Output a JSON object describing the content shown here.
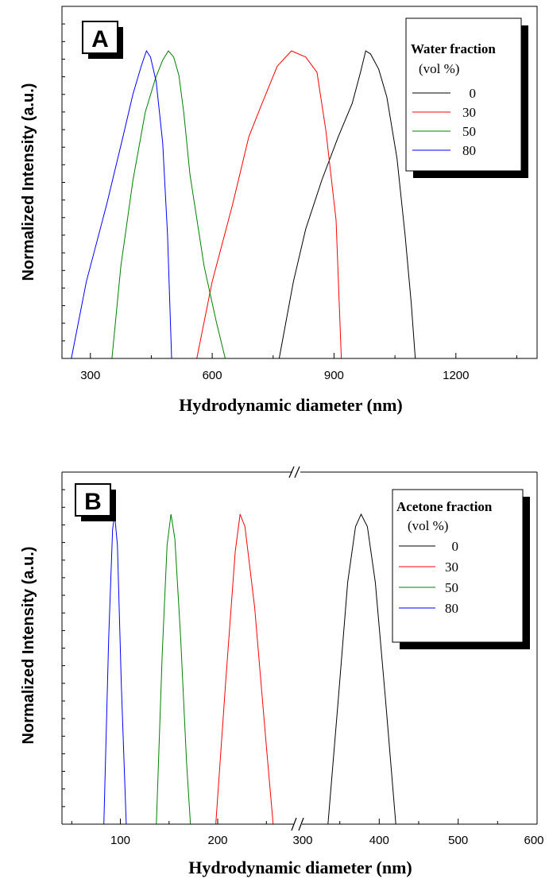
{
  "chart_data": [
    {
      "type": "line",
      "panel_label": "A",
      "xlabel": "Hydrodynamic diameter (nm)",
      "ylabel": "Normalized Intensity (a.u.)",
      "xlim": [
        230,
        1400
      ],
      "ylim": [
        0,
        1.0
      ],
      "x_ticks": [
        300,
        600,
        900,
        1200
      ],
      "x_tick_labels": [
        "300",
        "600",
        "900",
        "1200"
      ],
      "legend_title": "Water fraction",
      "legend_subtitle": "(vol %)",
      "legend_position": "top-right",
      "series": [
        {
          "name": "0",
          "color": "#000000",
          "x": [
            765,
            800,
            830,
            870,
            910,
            945,
            965,
            978,
            990,
            1010,
            1030,
            1055,
            1075,
            1090,
            1100
          ],
          "y": [
            0.0,
            0.25,
            0.42,
            0.58,
            0.72,
            0.83,
            0.93,
            1.0,
            0.99,
            0.94,
            0.85,
            0.65,
            0.4,
            0.18,
            0.0
          ]
        },
        {
          "name": "30",
          "color": "#ff0000",
          "x": [
            562,
            600,
            650,
            690,
            720,
            760,
            795,
            830,
            858,
            880,
            905,
            918
          ],
          "y": [
            0.0,
            0.25,
            0.5,
            0.72,
            0.82,
            0.95,
            1.0,
            0.98,
            0.93,
            0.74,
            0.45,
            0.0
          ]
        },
        {
          "name": "50",
          "color": "#008000",
          "x": [
            353,
            375,
            405,
            435,
            460,
            478,
            492,
            505,
            518,
            530,
            545,
            580,
            610,
            632
          ],
          "y": [
            0.0,
            0.3,
            0.58,
            0.8,
            0.91,
            0.97,
            1.0,
            0.98,
            0.92,
            0.8,
            0.6,
            0.3,
            0.12,
            0.0
          ]
        },
        {
          "name": "80",
          "color": "#0000ff",
          "x": [
            253,
            290,
            340,
            380,
            405,
            425,
            438,
            448,
            462,
            478,
            490,
            500
          ],
          "y": [
            0.0,
            0.25,
            0.5,
            0.72,
            0.86,
            0.95,
            1.0,
            0.98,
            0.9,
            0.7,
            0.4,
            0.0
          ]
        }
      ]
    },
    {
      "type": "line",
      "panel_label": "B",
      "xlabel": "Hydrodynamic diameter (nm)",
      "ylabel": "Normalized Intensity (a.u.)",
      "axis_break": true,
      "x_segments": [
        [
          40,
          280
        ],
        [
          300,
          600
        ]
      ],
      "ylim": [
        0,
        1.0
      ],
      "x_ticks": [
        100,
        200,
        300,
        400,
        500,
        600
      ],
      "x_tick_labels": [
        "100",
        "200",
        "300",
        "400",
        "500",
        "600"
      ],
      "legend_title": "Acetone fraction",
      "legend_subtitle": "(vol %)",
      "legend_position": "top-right",
      "series": [
        {
          "name": "0",
          "color": "#000000",
          "x": [
            335,
            348,
            360,
            370,
            377,
            385,
            395,
            408,
            421
          ],
          "y": [
            0.0,
            0.4,
            0.78,
            0.96,
            1.0,
            0.96,
            0.78,
            0.4,
            0.0
          ]
        },
        {
          "name": "30",
          "color": "#ff0000",
          "x": [
            198,
            208,
            218,
            223,
            228,
            238,
            250,
            257
          ],
          "y": [
            0.0,
            0.45,
            0.88,
            1.0,
            0.96,
            0.7,
            0.25,
            0.0
          ]
        },
        {
          "name": "50",
          "color": "#008000",
          "x": [
            137,
            143,
            148,
            152,
            156,
            162,
            168,
            172
          ],
          "y": [
            0.0,
            0.55,
            0.9,
            1.0,
            0.92,
            0.6,
            0.2,
            0.0
          ]
        },
        {
          "name": "80",
          "color": "#0000ff",
          "x": [
            83,
            88,
            92,
            94,
            97,
            101,
            106
          ],
          "y": [
            0.0,
            0.6,
            0.95,
            1.0,
            0.9,
            0.45,
            0.0
          ]
        }
      ]
    }
  ]
}
